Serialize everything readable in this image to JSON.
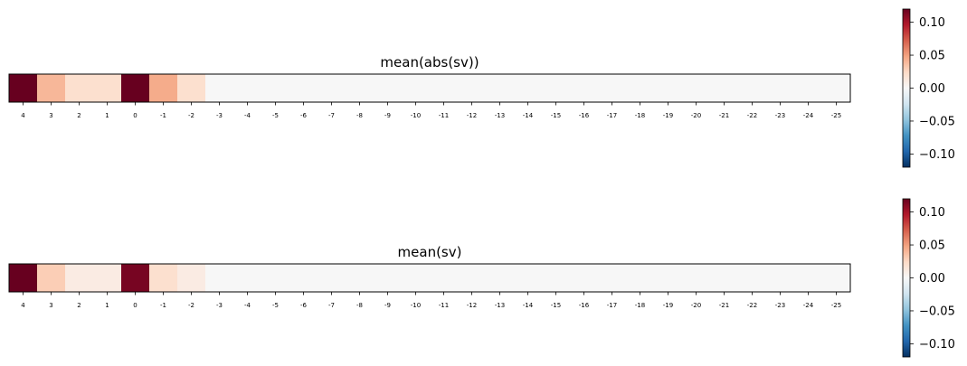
{
  "chart_data": [
    {
      "type": "heatmap",
      "title": "mean(abs(sv))",
      "xlabel": "",
      "ylabel": "",
      "categories": [
        "4",
        "3",
        "2",
        "1",
        "0",
        "-1",
        "-2",
        "-3",
        "-4",
        "-5",
        "-6",
        "-7",
        "-8",
        "-9",
        "-10",
        "-11",
        "-12",
        "-13",
        "-14",
        "-15",
        "-16",
        "-17",
        "-18",
        "-19",
        "-20",
        "-21",
        "-22",
        "-23",
        "-24",
        "-25"
      ],
      "values": [
        0.12,
        0.04,
        0.02,
        0.02,
        0.12,
        0.045,
        0.02,
        0,
        0,
        0,
        0,
        0,
        0,
        0,
        0,
        0,
        0,
        0,
        0,
        0,
        0,
        0,
        0,
        0,
        0,
        0,
        0,
        0,
        0,
        0
      ],
      "colormap": "RdBu_r",
      "clim": [
        -0.12,
        0.12
      ],
      "colorbar_ticks": [
        "0.10",
        "0.05",
        "0.00",
        "−0.05",
        "−0.10"
      ],
      "colorbar_tick_values": [
        0.1,
        0.05,
        0.0,
        -0.05,
        -0.1
      ]
    },
    {
      "type": "heatmap",
      "title": "mean(sv)",
      "xlabel": "",
      "ylabel": "",
      "categories": [
        "4",
        "3",
        "2",
        "1",
        "0",
        "-1",
        "-2",
        "-3",
        "-4",
        "-5",
        "-6",
        "-7",
        "-8",
        "-9",
        "-10",
        "-11",
        "-12",
        "-13",
        "-14",
        "-15",
        "-16",
        "-17",
        "-18",
        "-19",
        "-20",
        "-21",
        "-22",
        "-23",
        "-24",
        "-25"
      ],
      "values": [
        0.12,
        0.03,
        0.01,
        0.01,
        0.115,
        0.02,
        0.01,
        0,
        0,
        0,
        0,
        0,
        0,
        0,
        0,
        0,
        0,
        0,
        0,
        0,
        0,
        0,
        0,
        0,
        0,
        0,
        0,
        0,
        0,
        0
      ],
      "colormap": "RdBu_r",
      "clim": [
        -0.12,
        0.12
      ],
      "colorbar_ticks": [
        "0.10",
        "0.05",
        "0.00",
        "−0.05",
        "−0.10"
      ],
      "colorbar_tick_values": [
        0.1,
        0.05,
        0.0,
        -0.05,
        -0.1
      ]
    }
  ]
}
